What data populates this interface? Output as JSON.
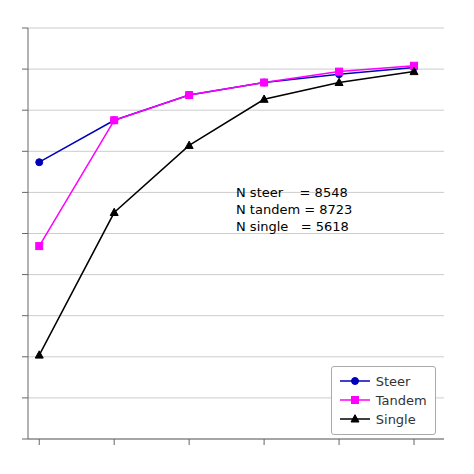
{
  "chart_data": {
    "type": "line",
    "x": [
      0,
      1,
      2,
      3,
      4,
      5
    ],
    "series": [
      {
        "name": "Steer",
        "color": "#0000bb",
        "marker": "circle",
        "values": [
          0.88,
          0.93,
          0.96,
          0.975,
          0.985,
          0.993
        ]
      },
      {
        "name": "Tandem",
        "color": "#ff00ff",
        "marker": "square",
        "values": [
          0.78,
          0.93,
          0.96,
          0.975,
          0.988,
          0.995
        ]
      },
      {
        "name": "Single",
        "color": "#000000",
        "marker": "triangle",
        "values": [
          0.65,
          0.82,
          0.9,
          0.955,
          0.975,
          0.988
        ]
      }
    ],
    "xlim": [
      -0.15,
      5.4
    ],
    "ylim": [
      0.55,
      1.04
    ],
    "xticks": [
      0,
      1,
      2,
      3,
      4,
      5
    ],
    "yticks": [
      0.55,
      0.599,
      0.648,
      0.697,
      0.746,
      0.795,
      0.844,
      0.893,
      0.942,
      0.991,
      1.04
    ],
    "grid": true,
    "tick_labels": false,
    "legend": "lower right",
    "annotations": [
      "N steer    = 8548",
      "N tandem = 8723",
      "N single   = 5618"
    ]
  }
}
